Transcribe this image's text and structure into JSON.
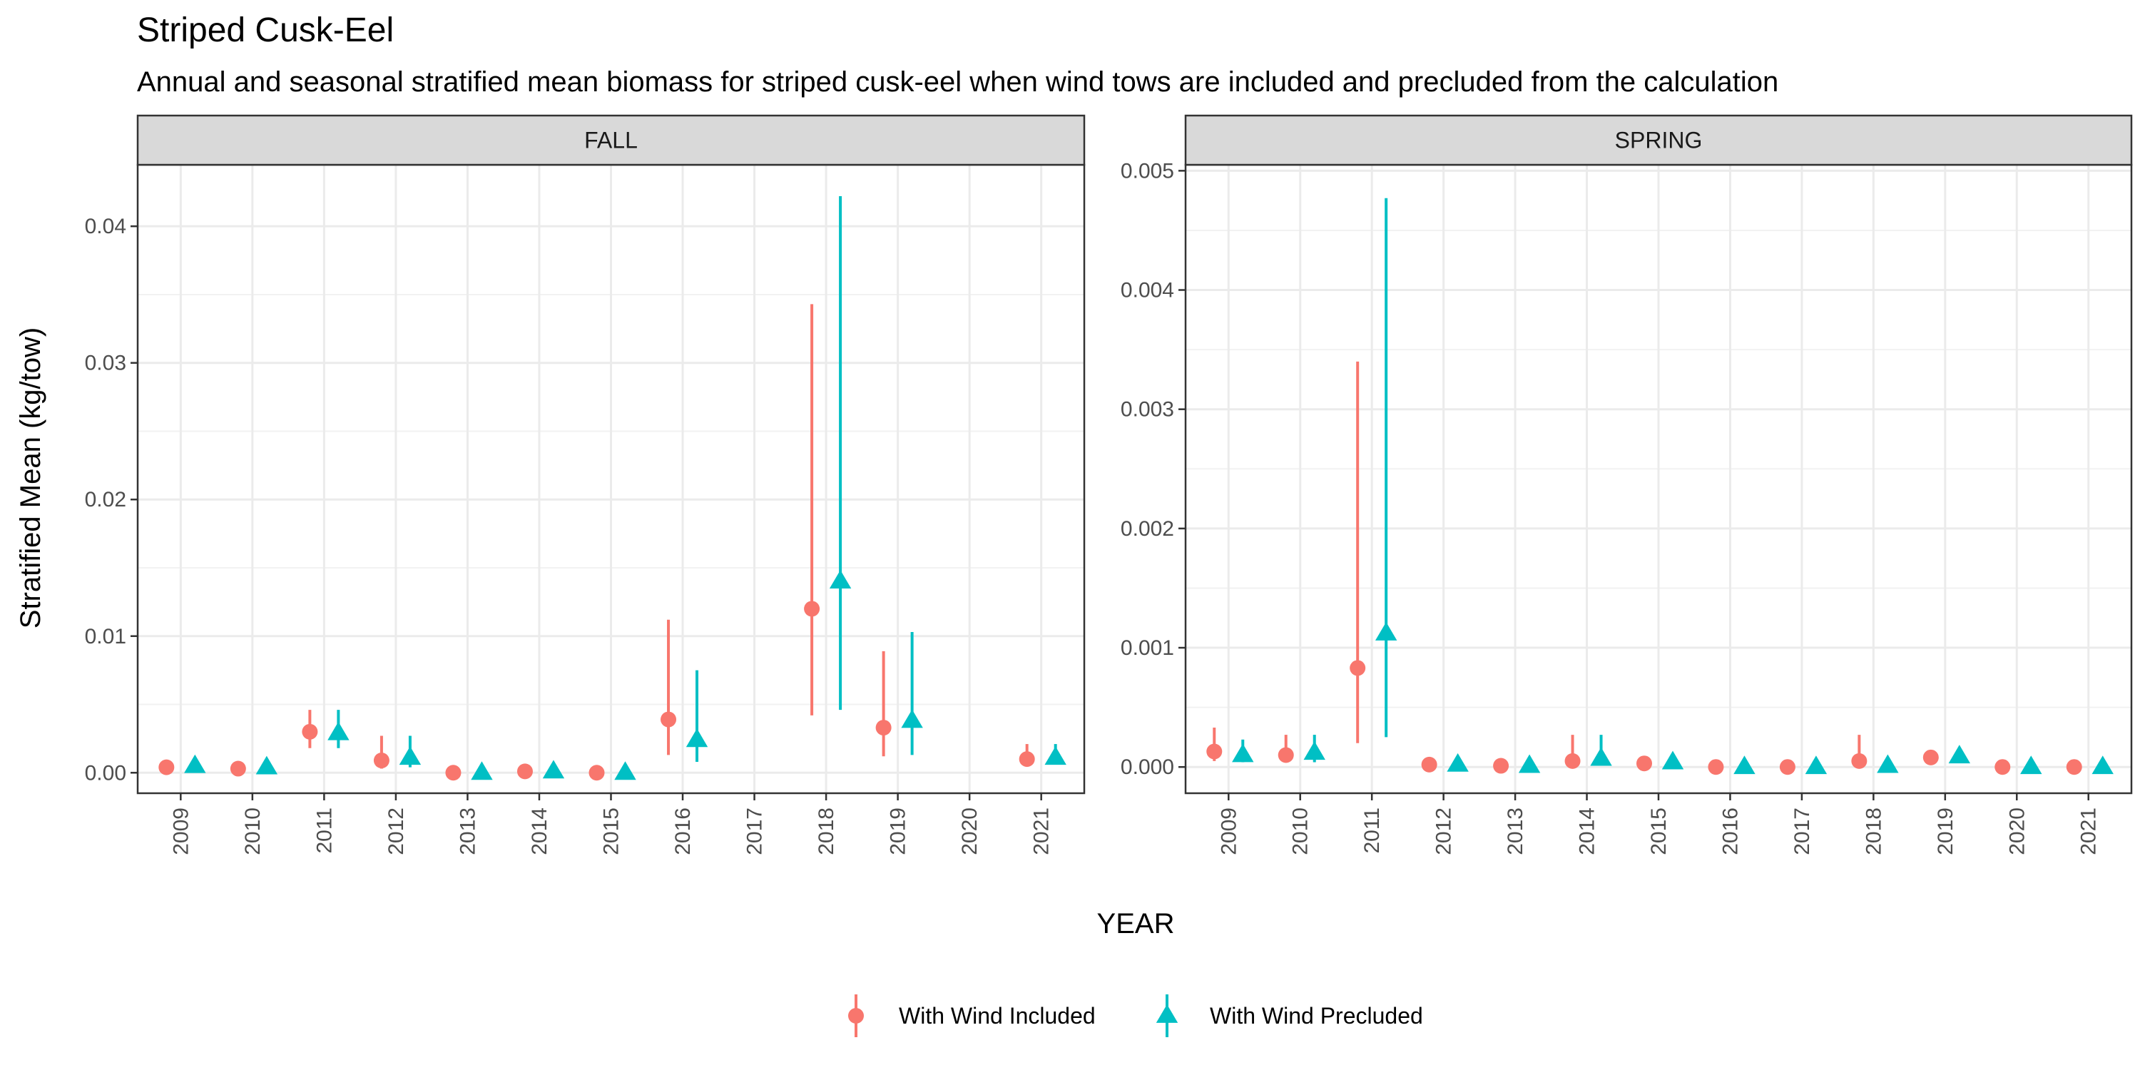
{
  "title": "Striped Cusk-Eel",
  "subtitle": "Annual and seasonal stratified mean biomass for striped cusk-eel when wind tows are included and precluded from the calculation",
  "colors": {
    "included": "#F8766D",
    "precluded": "#00BFC4"
  },
  "chart_data": {
    "type": "scatter",
    "xlabel": "YEAR",
    "ylabel": "Stratified Mean (kg/tow)",
    "grid": true,
    "legend_position": "bottom",
    "legend": [
      {
        "key": "included",
        "label": "With Wind Included"
      },
      {
        "key": "precluded",
        "label": "With Wind Precluded"
      }
    ],
    "x": [
      "2009",
      "2010",
      "2011",
      "2012",
      "2013",
      "2014",
      "2015",
      "2016",
      "2017",
      "2018",
      "2019",
      "2020",
      "2021"
    ],
    "panels": [
      {
        "name": "FALL",
        "ylim": [
          -0.0015,
          0.0445
        ],
        "yticks": [
          0,
          0.01,
          0.02,
          0.03,
          0.04
        ],
        "ytick_labels": [
          "0.00",
          "0.01",
          "0.02",
          "0.03",
          "0.04"
        ],
        "series": [
          {
            "key": "included",
            "points": [
              {
                "x": "2009",
                "y": 0.0004,
                "lo": 0.0004,
                "hi": 0.0004
              },
              {
                "x": "2010",
                "y": 0.0003,
                "lo": 0.0003,
                "hi": 0.0003
              },
              {
                "x": "2011",
                "y": 0.003,
                "lo": 0.0018,
                "hi": 0.0046
              },
              {
                "x": "2012",
                "y": 0.0009,
                "lo": 0.0003,
                "hi": 0.0027
              },
              {
                "x": "2013",
                "y": 0.0,
                "lo": 0.0,
                "hi": 0.0
              },
              {
                "x": "2014",
                "y": 0.0001,
                "lo": 0.0001,
                "hi": 0.0001
              },
              {
                "x": "2015",
                "y": 0.0,
                "lo": 0.0,
                "hi": 0.0
              },
              {
                "x": "2016",
                "y": 0.0039,
                "lo": 0.0013,
                "hi": 0.0112
              },
              {
                "x": "2018",
                "y": 0.012,
                "lo": 0.0042,
                "hi": 0.0343
              },
              {
                "x": "2019",
                "y": 0.0033,
                "lo": 0.0012,
                "hi": 0.0089
              },
              {
                "x": "2021",
                "y": 0.001,
                "lo": 0.001,
                "hi": 0.0021
              }
            ]
          },
          {
            "key": "precluded",
            "points": [
              {
                "x": "2009",
                "y": 0.0005,
                "lo": 0.0005,
                "hi": 0.0005
              },
              {
                "x": "2010",
                "y": 0.0004,
                "lo": 0.0004,
                "hi": 0.0004
              },
              {
                "x": "2011",
                "y": 0.0029,
                "lo": 0.0018,
                "hi": 0.0046
              },
              {
                "x": "2012",
                "y": 0.0011,
                "lo": 0.0004,
                "hi": 0.0027
              },
              {
                "x": "2013",
                "y": 0.0,
                "lo": 0.0,
                "hi": 0.0
              },
              {
                "x": "2014",
                "y": 0.0001,
                "lo": 0.0001,
                "hi": 0.0001
              },
              {
                "x": "2015",
                "y": 0.0,
                "lo": 0.0,
                "hi": 0.0
              },
              {
                "x": "2016",
                "y": 0.0024,
                "lo": 0.0008,
                "hi": 0.0075
              },
              {
                "x": "2018",
                "y": 0.014,
                "lo": 0.0046,
                "hi": 0.0422
              },
              {
                "x": "2019",
                "y": 0.0038,
                "lo": 0.0013,
                "hi": 0.0103
              },
              {
                "x": "2021",
                "y": 0.0011,
                "lo": 0.0011,
                "hi": 0.0021
              }
            ]
          }
        ]
      },
      {
        "name": "SPRING",
        "ylim": [
          -0.00022,
          0.00505
        ],
        "yticks": [
          0,
          0.001,
          0.002,
          0.003,
          0.004,
          0.005
        ],
        "ytick_labels": [
          "0.000",
          "0.001",
          "0.002",
          "0.003",
          "0.004",
          "0.005"
        ],
        "series": [
          {
            "key": "included",
            "points": [
              {
                "x": "2009",
                "y": 0.00013,
                "lo": 5e-05,
                "hi": 0.00033
              },
              {
                "x": "2010",
                "y": 0.0001,
                "lo": 4e-05,
                "hi": 0.00027
              },
              {
                "x": "2011",
                "y": 0.00083,
                "lo": 0.0002,
                "hi": 0.0034
              },
              {
                "x": "2012",
                "y": 2e-05,
                "lo": 2e-05,
                "hi": 2e-05
              },
              {
                "x": "2013",
                "y": 1e-05,
                "lo": 1e-05,
                "hi": 1e-05
              },
              {
                "x": "2014",
                "y": 5e-05,
                "lo": 1e-05,
                "hi": 0.00027
              },
              {
                "x": "2015",
                "y": 3e-05,
                "lo": 3e-05,
                "hi": 3e-05
              },
              {
                "x": "2016",
                "y": 0.0,
                "lo": 0.0,
                "hi": 0.0
              },
              {
                "x": "2017",
                "y": 0.0,
                "lo": 0.0,
                "hi": 0.0
              },
              {
                "x": "2018",
                "y": 5e-05,
                "lo": 1e-05,
                "hi": 0.00027
              },
              {
                "x": "2019",
                "y": 8e-05,
                "lo": 8e-05,
                "hi": 8e-05
              },
              {
                "x": "2020",
                "y": 0.0,
                "lo": 0.0,
                "hi": 0.0
              },
              {
                "x": "2021",
                "y": 0.0,
                "lo": 0.0,
                "hi": 0.0
              }
            ]
          },
          {
            "key": "precluded",
            "points": [
              {
                "x": "2009",
                "y": 0.0001,
                "lo": 4e-05,
                "hi": 0.00023
              },
              {
                "x": "2010",
                "y": 0.00012,
                "lo": 4e-05,
                "hi": 0.00027
              },
              {
                "x": "2011",
                "y": 0.00112,
                "lo": 0.00025,
                "hi": 0.00477
              },
              {
                "x": "2012",
                "y": 2e-05,
                "lo": 2e-05,
                "hi": 2e-05
              },
              {
                "x": "2013",
                "y": 1e-05,
                "lo": 1e-05,
                "hi": 1e-05
              },
              {
                "x": "2014",
                "y": 7e-05,
                "lo": 1e-05,
                "hi": 0.00027
              },
              {
                "x": "2015",
                "y": 4e-05,
                "lo": 4e-05,
                "hi": 4e-05
              },
              {
                "x": "2016",
                "y": 0.0,
                "lo": 0.0,
                "hi": 0.0
              },
              {
                "x": "2017",
                "y": 0.0,
                "lo": 0.0,
                "hi": 0.0
              },
              {
                "x": "2018",
                "y": 1e-05,
                "lo": 1e-05,
                "hi": 1e-05
              },
              {
                "x": "2019",
                "y": 9e-05,
                "lo": 9e-05,
                "hi": 9e-05
              },
              {
                "x": "2020",
                "y": 0.0,
                "lo": 0.0,
                "hi": 0.0
              },
              {
                "x": "2021",
                "y": 0.0,
                "lo": 0.0,
                "hi": 0.0
              }
            ]
          }
        ]
      }
    ]
  }
}
